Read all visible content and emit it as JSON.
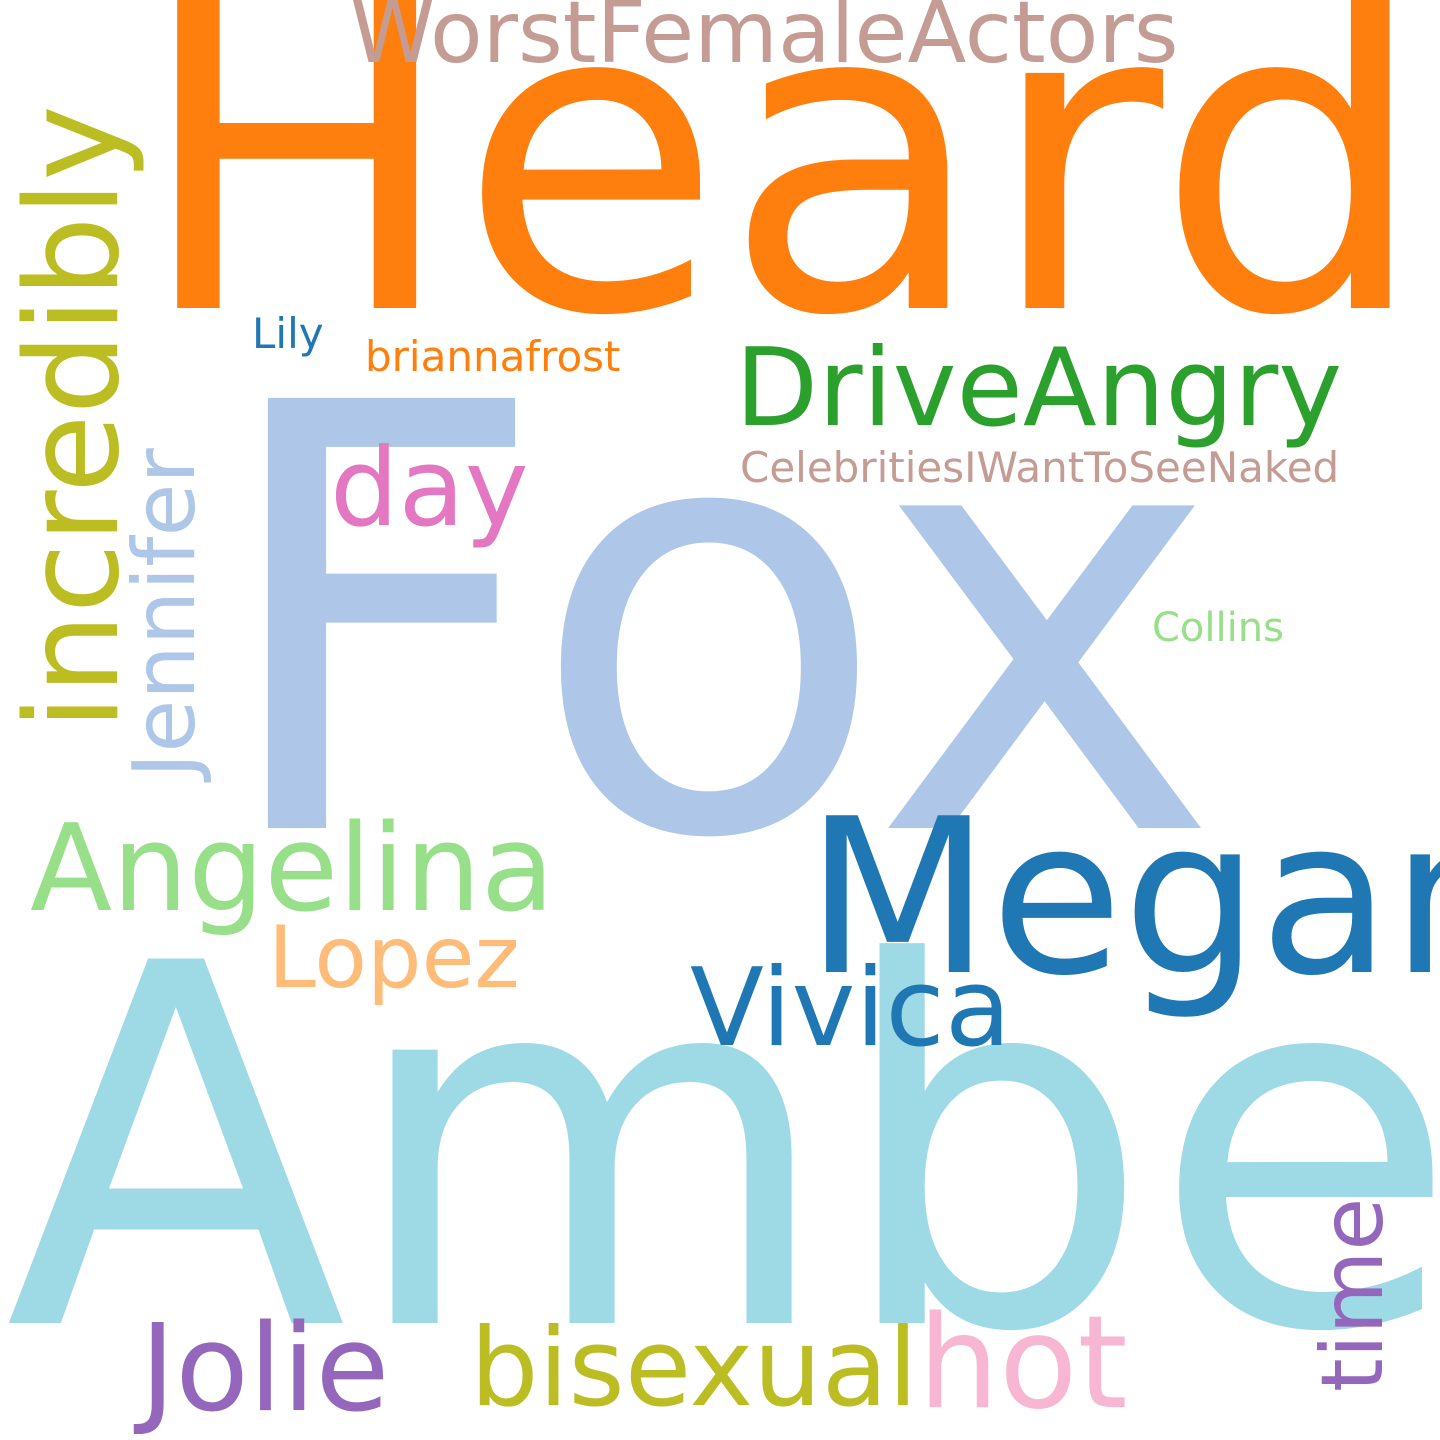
{
  "cloud": {
    "background": "#ffffff",
    "words": {
      "heard": {
        "text": "Heard",
        "color": "#ff7f0e",
        "orientation": "horizontal"
      },
      "worst": {
        "text": "WorstFemaleActors",
        "color": "#c49c94",
        "orientation": "horizontal"
      },
      "fox": {
        "text": "Fox",
        "color": "#aec7e8",
        "orientation": "horizontal"
      },
      "drive": {
        "text": "DriveAngry",
        "color": "#2ca02c",
        "orientation": "horizontal"
      },
      "lily": {
        "text": "Lily",
        "color": "#1f77b4",
        "orientation": "horizontal"
      },
      "brianna": {
        "text": "briannafrost",
        "color": "#ff7f0e",
        "orientation": "horizontal"
      },
      "day": {
        "text": "day",
        "color": "#e377c2",
        "orientation": "horizontal"
      },
      "celeb": {
        "text": "CelebritiesIWantToSeeNaked",
        "color": "#c49c94",
        "orientation": "horizontal"
      },
      "collins": {
        "text": "Collins",
        "color": "#98df8a",
        "orientation": "horizontal"
      },
      "incredibly": {
        "text": "incredibly",
        "color": "#bcbd22",
        "orientation": "vertical"
      },
      "jennifer": {
        "text": "Jennifer",
        "color": "#aec7e8",
        "orientation": "vertical"
      },
      "angelina": {
        "text": "Angelina",
        "color": "#98df8a",
        "orientation": "horizontal"
      },
      "megan": {
        "text": "Megan",
        "color": "#1f77b4",
        "orientation": "horizontal"
      },
      "lopez": {
        "text": "Lopez",
        "color": "#ffbb78",
        "orientation": "horizontal"
      },
      "vivica": {
        "text": "Vivica",
        "color": "#1f77b4",
        "orientation": "horizontal"
      },
      "amber": {
        "text": "Amber",
        "color": "#9edae5",
        "orientation": "horizontal"
      },
      "jolie": {
        "text": "Jolie",
        "color": "#9467bd",
        "orientation": "horizontal"
      },
      "bisexual": {
        "text": "bisexual",
        "color": "#bcbd22",
        "orientation": "horizontal"
      },
      "hot": {
        "text": "hot",
        "color": "#f7b6d2",
        "orientation": "horizontal"
      },
      "time": {
        "text": "time",
        "color": "#9467bd",
        "orientation": "vertical"
      }
    }
  }
}
